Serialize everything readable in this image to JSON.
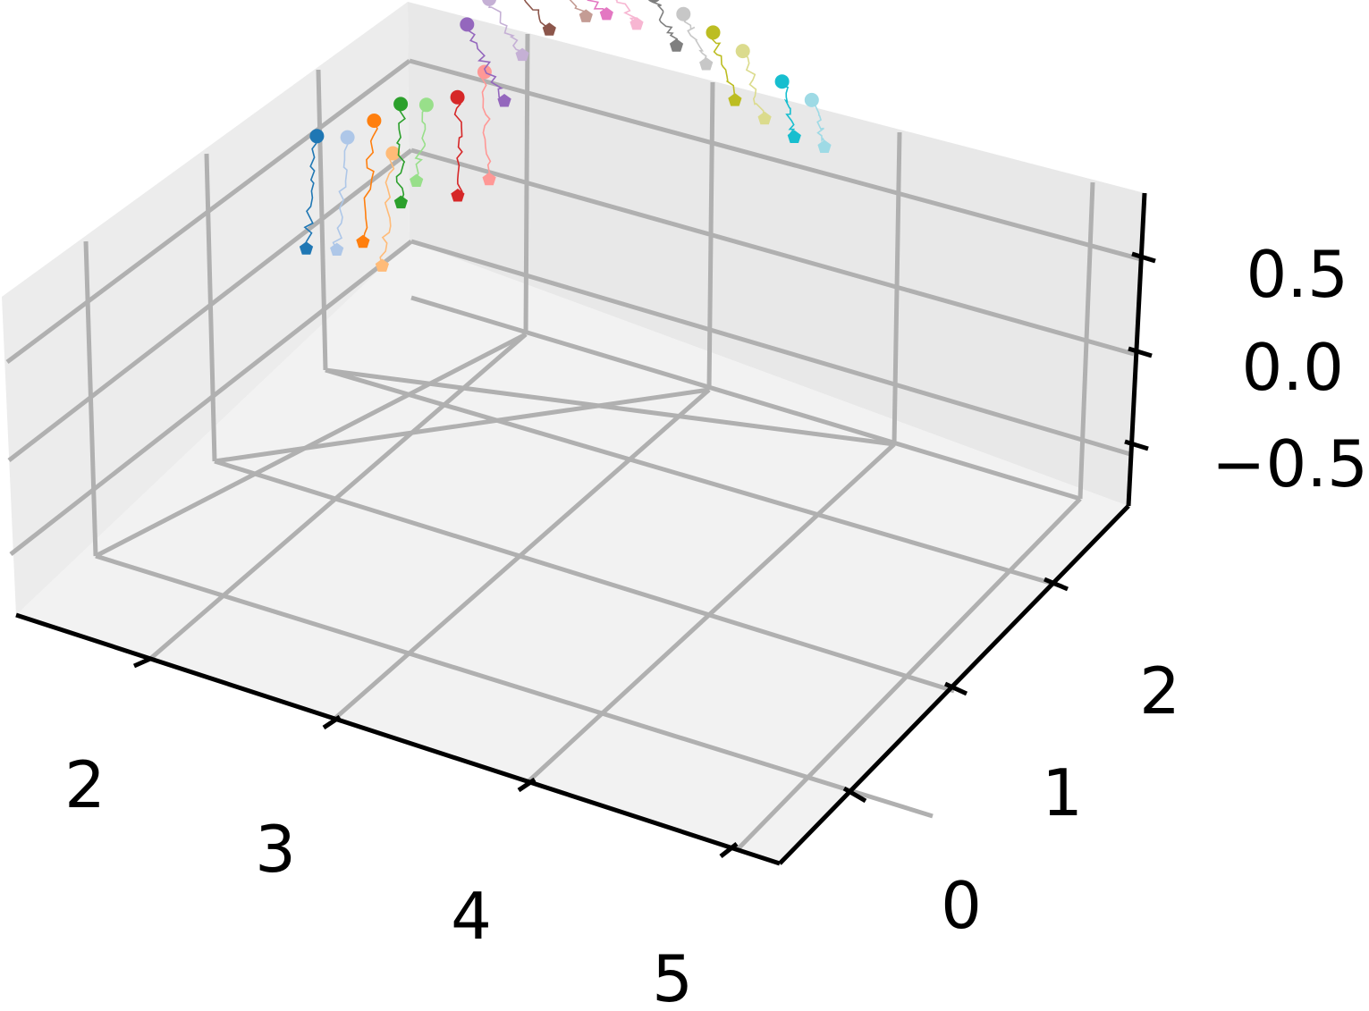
{
  "chart_data": {
    "type": "scatter",
    "title": "",
    "xlabel": "",
    "ylabel": "",
    "zlabel": "",
    "grid": true,
    "legend": "none",
    "xlim": [
      1.6,
      5.4
    ],
    "ylim": [
      -0.5,
      2.6
    ],
    "zlim": [
      -0.9,
      0.9
    ],
    "x_ticks": [
      {
        "value": 2,
        "label": "2"
      },
      {
        "value": 3,
        "label": "3"
      },
      {
        "value": 4,
        "label": "4"
      },
      {
        "value": 5,
        "label": "5"
      }
    ],
    "y_ticks": [
      {
        "value": 0,
        "label": "0"
      },
      {
        "value": 1,
        "label": "1"
      },
      {
        "value": 2,
        "label": "2"
      }
    ],
    "z_ticks": [
      {
        "value": 0.5,
        "label": "0.5"
      },
      {
        "value": 0.0,
        "label": "0.0"
      },
      {
        "value": -0.5,
        "label": "−0.5"
      }
    ],
    "marker_start": "circle",
    "marker_end": "pentagon",
    "palette": [
      "#1f77b4",
      "#aec7e8",
      "#ff7f0e",
      "#ffbb78",
      "#2ca02c",
      "#98df8a",
      "#d62728",
      "#ff9896",
      "#9467bd",
      "#c5b0d5",
      "#8c564b",
      "#c49c94",
      "#e377c2",
      "#f7b6d2",
      "#7f7f7f",
      "#c7c7c7",
      "#bcbd22",
      "#dbdb8d",
      "#17becf",
      "#9edae5"
    ],
    "series": [
      {
        "start": [
          1.7,
          1.9,
          0.3
        ],
        "end": [
          1.65,
          1.95,
          -0.4
        ]
      },
      {
        "start": [
          1.85,
          1.9,
          0.35
        ],
        "end": [
          1.8,
          1.95,
          -0.35
        ]
      },
      {
        "start": [
          1.95,
          1.95,
          0.45
        ],
        "end": [
          1.9,
          2.0,
          -0.3
        ]
      },
      {
        "start": [
          2.05,
          1.95,
          0.3
        ],
        "end": [
          2.0,
          2.0,
          -0.4
        ]
      },
      {
        "start": [
          2.05,
          2.0,
          0.55
        ],
        "end": [
          2.05,
          2.05,
          -0.05
        ]
      },
      {
        "start": [
          2.15,
          2.05,
          0.55
        ],
        "end": [
          2.12,
          2.05,
          0.1
        ]
      },
      {
        "start": [
          2.3,
          2.05,
          0.65
        ],
        "end": [
          2.3,
          2.1,
          0.05
        ]
      },
      {
        "start": [
          2.4,
          2.1,
          0.8
        ],
        "end": [
          2.45,
          2.1,
          0.2
        ]
      },
      {
        "start": [
          2.25,
          2.2,
          0.95
        ],
        "end": [
          2.4,
          2.3,
          0.5
        ]
      },
      {
        "start": [
          2.3,
          2.3,
          1.05
        ],
        "end": [
          2.45,
          2.35,
          0.75
        ]
      },
      {
        "start": [
          2.3,
          2.4,
          1.15
        ],
        "end": [
          2.55,
          2.4,
          0.9
        ]
      },
      {
        "start": [
          2.4,
          2.45,
          1.2
        ],
        "end": [
          2.7,
          2.45,
          1.0
        ]
      },
      {
        "start": [
          2.45,
          2.5,
          1.25
        ],
        "end": [
          2.8,
          2.45,
          1.05
        ]
      },
      {
        "start": [
          2.7,
          2.5,
          1.25
        ],
        "end": [
          2.95,
          2.45,
          1.05
        ]
      },
      {
        "start": [
          3.0,
          2.5,
          1.2
        ],
        "end": [
          3.15,
          2.45,
          1.0
        ]
      },
      {
        "start": [
          3.15,
          2.5,
          1.15
        ],
        "end": [
          3.3,
          2.45,
          0.95
        ]
      },
      {
        "start": [
          3.3,
          2.5,
          1.1
        ],
        "end": [
          3.45,
          2.45,
          0.8
        ]
      },
      {
        "start": [
          3.45,
          2.5,
          1.05
        ],
        "end": [
          3.6,
          2.45,
          0.75
        ]
      },
      {
        "start": [
          3.65,
          2.5,
          0.95
        ],
        "end": [
          3.75,
          2.45,
          0.7
        ]
      },
      {
        "start": [
          3.8,
          2.5,
          0.9
        ],
        "end": [
          3.9,
          2.45,
          0.7
        ]
      }
    ]
  }
}
